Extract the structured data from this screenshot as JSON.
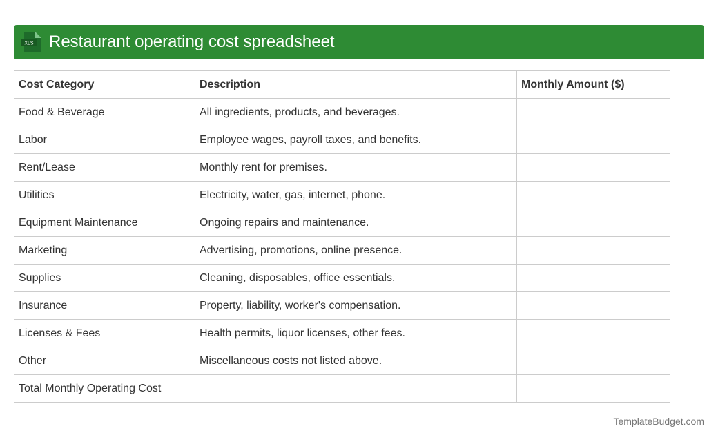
{
  "header": {
    "icon_label": "XLS",
    "title": "Restaurant operating cost spreadsheet"
  },
  "table": {
    "columns": [
      "Cost Category",
      "Description",
      "Monthly Amount ($)"
    ],
    "rows": [
      [
        "Food & Beverage",
        "All ingredients, products, and beverages."
      ],
      [
        "Labor",
        "Employee wages, payroll taxes, and benefits."
      ],
      [
        "Rent/Lease",
        "Monthly rent for premises."
      ],
      [
        "Utilities",
        "Electricity, water, gas, internet, phone."
      ],
      [
        "Equipment Maintenance",
        "Ongoing repairs and maintenance."
      ],
      [
        "Marketing",
        "Advertising, promotions, online presence."
      ],
      [
        "Supplies",
        "Cleaning, disposables, office essentials."
      ],
      [
        "Insurance",
        "Property, liability, worker's compensation."
      ],
      [
        "Licenses & Fees",
        "Health permits, liquor licenses, other fees."
      ],
      [
        "Other",
        "Miscellaneous costs not listed above."
      ]
    ],
    "total_label": "Total Monthly Operating Cost"
  },
  "footer": {
    "text": "TemplateBudget.com"
  }
}
